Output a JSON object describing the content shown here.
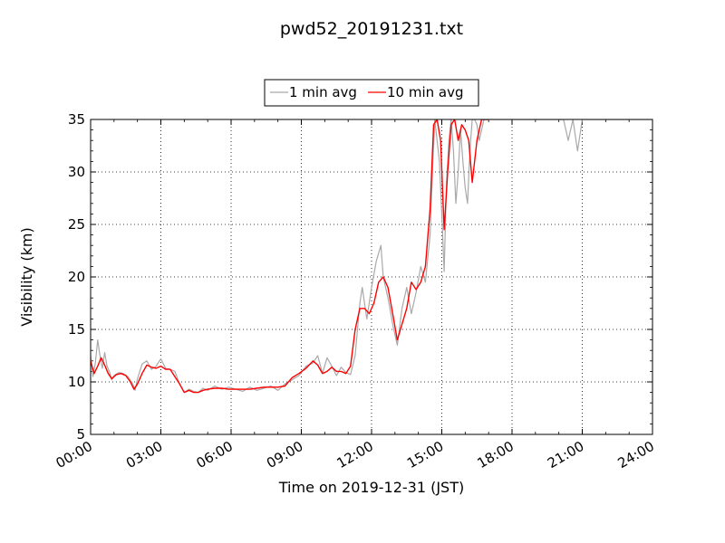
{
  "chart_data": {
    "type": "line",
    "title": "pwd52_20191231.txt",
    "xlabel": "Time on 2019-12-31 (JST)",
    "ylabel": "Visibility (km)",
    "xlim": [
      0,
      24
    ],
    "ylim": [
      5,
      35
    ],
    "x_ticks": [
      "00:00",
      "03:00",
      "06:00",
      "09:00",
      "12:00",
      "15:00",
      "18:00",
      "21:00",
      "24:00"
    ],
    "y_ticks": [
      "5",
      "10",
      "15",
      "20",
      "25",
      "30",
      "35"
    ],
    "grid": true,
    "legend_position": "top-center",
    "series": [
      {
        "name": "1 min avg",
        "color": "#a9a9a9",
        "x": [
          0.0,
          0.1,
          0.2,
          0.3,
          0.4,
          0.5,
          0.6,
          0.7,
          0.8,
          0.9,
          1.0,
          1.2,
          1.4,
          1.6,
          1.8,
          1.9,
          2.0,
          2.2,
          2.4,
          2.6,
          2.8,
          3.0,
          3.2,
          3.4,
          3.6,
          3.8,
          4.0,
          4.2,
          4.4,
          4.6,
          4.8,
          5.0,
          5.3,
          5.6,
          5.9,
          6.2,
          6.5,
          6.8,
          7.1,
          7.4,
          7.7,
          8.0,
          8.3,
          8.6,
          8.9,
          9.2,
          9.5,
          9.7,
          9.9,
          10.1,
          10.3,
          10.5,
          10.7,
          10.9,
          11.1,
          11.3,
          11.5,
          11.6,
          11.8,
          12.0,
          12.2,
          12.4,
          12.5,
          12.7,
          12.9,
          13.1,
          13.3,
          13.5,
          13.7,
          13.9,
          14.1,
          14.3,
          14.5,
          14.6,
          14.7,
          14.8,
          14.9,
          15.0,
          15.1,
          15.2,
          15.3,
          15.4,
          15.5,
          15.6,
          15.7,
          15.8,
          15.9,
          16.0,
          16.1,
          16.2,
          16.3,
          16.4,
          16.5,
          16.6,
          16.8,
          17.0,
          17.5,
          18.0,
          18.5,
          19.0,
          19.5,
          20.0,
          20.2,
          20.4,
          20.6,
          20.8,
          21.0,
          22.0,
          23.0,
          24.0
        ],
        "y": [
          12.5,
          10.5,
          11.8,
          14.0,
          12.5,
          11.3,
          12.8,
          11.5,
          11.0,
          10.2,
          10.6,
          10.9,
          10.8,
          10.5,
          9.8,
          9.2,
          10.3,
          11.7,
          12.0,
          11.2,
          11.5,
          12.2,
          11.3,
          11.2,
          11.0,
          9.8,
          9.0,
          9.3,
          9.1,
          9.0,
          9.4,
          9.2,
          9.6,
          9.3,
          9.5,
          9.3,
          9.1,
          9.5,
          9.2,
          9.4,
          9.6,
          9.2,
          9.8,
          10.2,
          10.6,
          11.5,
          11.8,
          12.5,
          10.8,
          12.3,
          11.5,
          10.6,
          11.4,
          10.9,
          10.7,
          12.5,
          17.5,
          19.0,
          16.0,
          19.0,
          21.5,
          23.0,
          20.0,
          18.0,
          15.5,
          13.5,
          17.0,
          19.0,
          16.5,
          18.5,
          21.0,
          19.5,
          24.0,
          30.0,
          35.0,
          33.0,
          31.0,
          26.0,
          20.5,
          29.0,
          33.0,
          35.0,
          32.0,
          27.0,
          30.0,
          34.0,
          31.0,
          28.5,
          27.0,
          32.0,
          35.0,
          35.0,
          34.5,
          33.0,
          35.0,
          35.0,
          35.0,
          35.0,
          35.0,
          35.0,
          35.0,
          35.0,
          35.0,
          33.0,
          35.0,
          32.0,
          35.0,
          35.0,
          35.0,
          35.0
        ]
      },
      {
        "name": "10 min avg",
        "color": "#ff0000",
        "x": [
          0.0,
          0.15,
          0.3,
          0.45,
          0.6,
          0.75,
          0.9,
          1.1,
          1.3,
          1.5,
          1.7,
          1.85,
          2.0,
          2.2,
          2.4,
          2.6,
          2.8,
          3.0,
          3.2,
          3.4,
          3.6,
          3.8,
          4.0,
          4.2,
          4.4,
          4.6,
          4.8,
          5.0,
          5.3,
          5.6,
          5.9,
          6.2,
          6.5,
          6.8,
          7.1,
          7.4,
          7.7,
          8.0,
          8.3,
          8.6,
          8.9,
          9.2,
          9.5,
          9.7,
          9.9,
          10.1,
          10.3,
          10.5,
          10.7,
          10.9,
          11.1,
          11.3,
          11.5,
          11.7,
          11.9,
          12.1,
          12.3,
          12.5,
          12.7,
          12.9,
          13.1,
          13.3,
          13.5,
          13.7,
          13.9,
          14.1,
          14.3,
          14.5,
          14.65,
          14.8,
          14.95,
          15.1,
          15.25,
          15.4,
          15.55,
          15.7,
          15.85,
          16.0,
          16.15,
          16.3,
          16.5,
          16.7,
          16.85,
          17.0
        ],
        "y": [
          12.0,
          10.8,
          11.5,
          12.3,
          11.6,
          10.8,
          10.3,
          10.7,
          10.8,
          10.6,
          10.0,
          9.3,
          9.8,
          10.8,
          11.6,
          11.4,
          11.3,
          11.5,
          11.2,
          11.2,
          10.5,
          9.8,
          9.0,
          9.2,
          9.0,
          9.0,
          9.2,
          9.3,
          9.4,
          9.4,
          9.3,
          9.3,
          9.3,
          9.3,
          9.4,
          9.5,
          9.5,
          9.5,
          9.6,
          10.4,
          10.8,
          11.3,
          12.0,
          11.6,
          10.8,
          11.0,
          11.4,
          11.0,
          11.0,
          10.8,
          11.5,
          15.0,
          17.0,
          17.0,
          16.5,
          17.5,
          19.5,
          20.0,
          19.0,
          16.5,
          14.0,
          15.5,
          17.0,
          19.5,
          18.8,
          19.5,
          21.0,
          26.5,
          34.5,
          35.0,
          33.0,
          24.5,
          30.0,
          34.5,
          35.0,
          33.0,
          34.5,
          34.0,
          33.0,
          29.0,
          33.0,
          35.0,
          35.0,
          35.0
        ]
      }
    ]
  }
}
